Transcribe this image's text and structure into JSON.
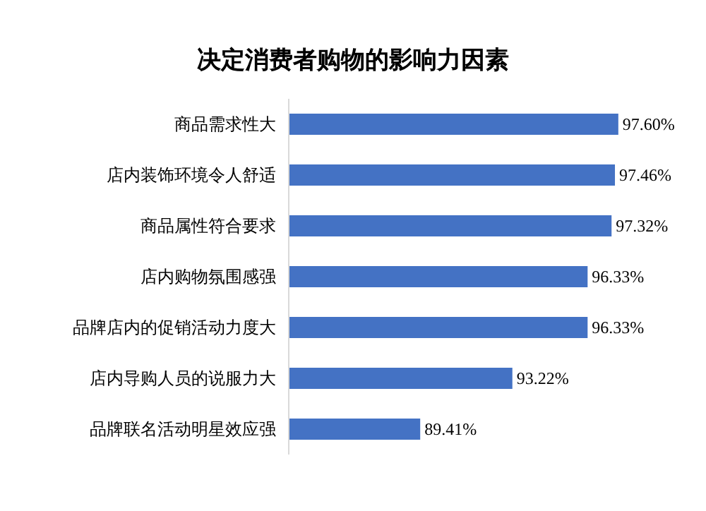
{
  "chart_data": {
    "type": "bar",
    "orientation": "horizontal",
    "title": "决定消费者购物的影响力因素",
    "categories": [
      "商品需求性大",
      "店内装饰环境令人舒适",
      "商品属性符合要求",
      "店内购物氛围感强",
      "品牌店内的促销活动力度大",
      "店内导购人员的说服力大",
      "品牌联名活动明星效应强"
    ],
    "values": [
      97.6,
      97.46,
      97.32,
      96.33,
      96.33,
      93.22,
      89.41
    ],
    "value_labels": [
      "97.60%",
      "97.46%",
      "97.32%",
      "96.33%",
      "96.33%",
      "93.22%",
      "89.41%"
    ],
    "color": "#4472c4",
    "tick_labels": "y",
    "grid": false,
    "legend": false
  }
}
